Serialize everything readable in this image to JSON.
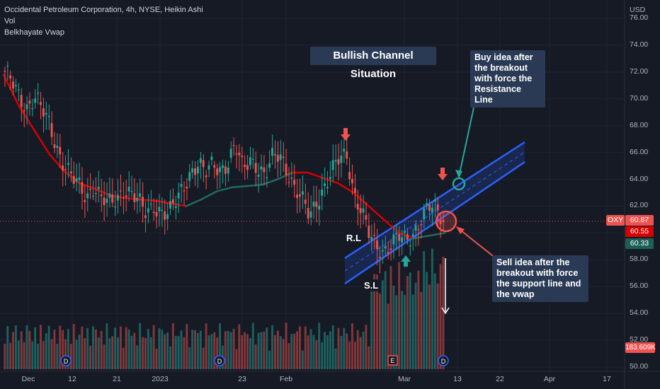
{
  "header": {
    "title": "Occidental Petroleum Corporation, 4h, NYSE, Heikin Ashi",
    "indicators": [
      "Vol",
      "Belkhayate Vwap"
    ]
  },
  "annotations": {
    "title": "Bullish Channel Situation",
    "buy_idea": [
      "Buy idea after",
      "the breakout",
      "with force the",
      "Resistance Line"
    ],
    "sell_idea": [
      "Sell idea after the",
      "breakout with force",
      "the support line and",
      "the vwap"
    ],
    "rl": "R.L",
    "sl": "S.L"
  },
  "price_axis": {
    "currency": "USD",
    "ticks": [
      "76.00",
      "74.00",
      "72.00",
      "70.00",
      "68.00",
      "66.00",
      "64.00",
      "62.00",
      "60.00",
      "58.00",
      "56.00",
      "54.00",
      "52.00",
      "50.00"
    ],
    "symbol_tag": "OXY",
    "last_price": "60.87",
    "tag_red": "60.55",
    "tag_green": "60.33",
    "volume_tag": "183.609K"
  },
  "time_axis": {
    "ticks": [
      "Dec",
      "12",
      "21",
      "2023",
      "23",
      "Feb",
      "Mar",
      "13",
      "22",
      "Apr",
      "17"
    ]
  },
  "colors": {
    "background": "#161a25",
    "up": "#26a69a",
    "down": "#ef5350",
    "vwap_down": "#d50000",
    "channel": "#2962ff",
    "buy_circle": "#26a69a",
    "sell_circle": "#ef5350"
  },
  "chart_data": {
    "type": "candlestick",
    "price_range": [
      50,
      76
    ],
    "current_price": 60.87,
    "channel": {
      "support_start": [
        58.0,
        "Feb 20"
      ],
      "support_end": [
        64.5,
        "Mar 24"
      ],
      "resistance_start": [
        60.6,
        "Feb 20"
      ],
      "resistance_end": [
        66.8,
        "Mar 24"
      ]
    },
    "close_path": [
      71.8,
      71.2,
      70.3,
      69.4,
      70.0,
      69.1,
      68.2,
      66.5,
      65.0,
      64.0,
      63.5,
      62.8,
      63.6,
      62.4,
      62.1,
      62.6,
      63.4,
      62.9,
      62.2,
      61.5,
      62.2,
      61.6,
      61.2,
      62.3,
      63.6,
      64.6,
      65.0,
      64.3,
      65.3,
      64.9,
      65.1,
      66.3,
      64.8,
      65.7,
      65.0,
      64.0,
      65.5,
      66.0,
      64.8,
      63.2,
      62.3,
      61.3,
      62.6,
      63.4,
      64.4,
      65.5,
      66.0,
      63.0,
      61.5,
      59.8,
      59.0,
      58.8,
      59.2,
      59.6,
      59.3,
      60.1,
      61.2,
      61.9,
      61.6,
      60.9
    ],
    "vwap_path": [
      71.8,
      69.5,
      67.7,
      65.9,
      64.6,
      63.7,
      63.3,
      62.8,
      62.6,
      62.5,
      62.4,
      62.2,
      62.0,
      62.5,
      63.1,
      63.4,
      63.5,
      63.6,
      64.0,
      64.5,
      64.5,
      64.1,
      63.7,
      63.0,
      62.0,
      61.0,
      60.0,
      59.6,
      59.8,
      60.0
    ],
    "buy_target": 63.4,
    "sell_target": 60.5
  }
}
